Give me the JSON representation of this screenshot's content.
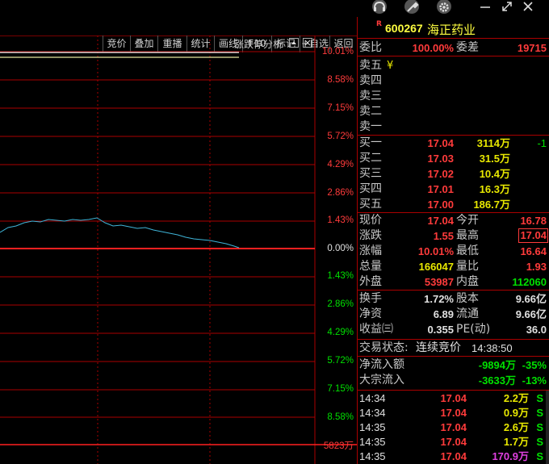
{
  "window": {
    "icons": [
      "headset-icon",
      "wrench-icon",
      "gear-icon",
      "minimize-icon",
      "restore-icon",
      "close-icon"
    ]
  },
  "toolbar": {
    "buttons": [
      "竞价",
      "叠加",
      "重播",
      "统计",
      "画线",
      "F10",
      "标记",
      "+自选",
      "返回"
    ]
  },
  "chart": {
    "analysis_label": "涨跌停分析",
    "pct_labels_up": [
      "10.01%",
      "8.58%",
      "7.15%",
      "5.72%",
      "4.29%",
      "2.86%",
      "1.43%"
    ],
    "pct_zero": "0.00%",
    "pct_labels_down": [
      "1.43%",
      "2.86%",
      "4.29%",
      "5.72%",
      "7.15%",
      "8.58%"
    ],
    "volume_label": "5823万",
    "colors": {
      "up": "#ff3b3b",
      "down": "#00e000",
      "price_line": "#3fb4d8",
      "grid": "#a00000"
    }
  },
  "stock": {
    "badge": "R",
    "code": "600267",
    "name": "海正药业"
  },
  "commission": {
    "ratio_label": "委比",
    "ratio": "100.00%",
    "diff_label": "委差",
    "diff": "19715"
  },
  "asks": [
    {
      "label": "卖五",
      "extra": "¥"
    },
    {
      "label": "卖四",
      "extra": ""
    },
    {
      "label": "卖三",
      "extra": ""
    },
    {
      "label": "卖二",
      "extra": ""
    },
    {
      "label": "卖一",
      "extra": ""
    }
  ],
  "bids": [
    {
      "label": "买一",
      "price": "17.04",
      "vol": "3114万",
      "chg": "-1"
    },
    {
      "label": "买二",
      "price": "17.03",
      "vol": "31.5万",
      "chg": ""
    },
    {
      "label": "买三",
      "price": "17.02",
      "vol": "10.4万",
      "chg": ""
    },
    {
      "label": "买四",
      "price": "17.01",
      "vol": "16.3万",
      "chg": ""
    },
    {
      "label": "买五",
      "price": "17.00",
      "vol": "186.7万",
      "chg": ""
    }
  ],
  "quote": [
    {
      "l1": "现价",
      "v1": "17.04",
      "c1": "red",
      "l2": "今开",
      "v2": "16.78",
      "c2": "red"
    },
    {
      "l1": "涨跌",
      "v1": "1.55",
      "c1": "red",
      "l2": "最高",
      "v2": "17.04",
      "c2": "red"
    },
    {
      "l1": "涨幅",
      "v1": "10.01%",
      "c1": "red",
      "l2": "最低",
      "v2": "16.64",
      "c2": "red"
    },
    {
      "l1": "总量",
      "v1": "166047",
      "c1": "yellow",
      "l2": "量比",
      "v2": "1.93",
      "c2": "red"
    },
    {
      "l1": "外盘",
      "v1": "53987",
      "c1": "red",
      "l2": "内盘",
      "v2": "112060",
      "c2": "green"
    }
  ],
  "fundamentals": [
    {
      "l1": "换手",
      "v1": "1.72%",
      "l2": "股本",
      "v2": "9.66亿"
    },
    {
      "l1": "净资",
      "v1": "6.89",
      "l2": "流通",
      "v2": "9.66亿"
    },
    {
      "l1": "收益㈢",
      "v1": "0.355",
      "l2": "PE(动)",
      "v2": "36.0"
    }
  ],
  "status": {
    "label": "交易状态:",
    "value": "连续竞价",
    "time": "14:38:50"
  },
  "flows": [
    {
      "label": "净流入额",
      "value": "-9894万",
      "pct": "-35%"
    },
    {
      "label": "大宗流入",
      "value": "-3633万",
      "pct": "-13%"
    }
  ],
  "ticks": [
    {
      "time": "14:34",
      "price": "17.04",
      "vol": "2.2万",
      "side": "S",
      "vol_color": "yellow"
    },
    {
      "time": "14:34",
      "price": "17.04",
      "vol": "0.9万",
      "side": "S",
      "vol_color": "yellow"
    },
    {
      "time": "14:35",
      "price": "17.04",
      "vol": "2.6万",
      "side": "S",
      "vol_color": "yellow"
    },
    {
      "time": "14:35",
      "price": "17.04",
      "vol": "1.7万",
      "side": "S",
      "vol_color": "yellow"
    },
    {
      "time": "14:35",
      "price": "17.04",
      "vol": "170.9万",
      "side": "S",
      "vol_color": "magenta"
    }
  ]
}
